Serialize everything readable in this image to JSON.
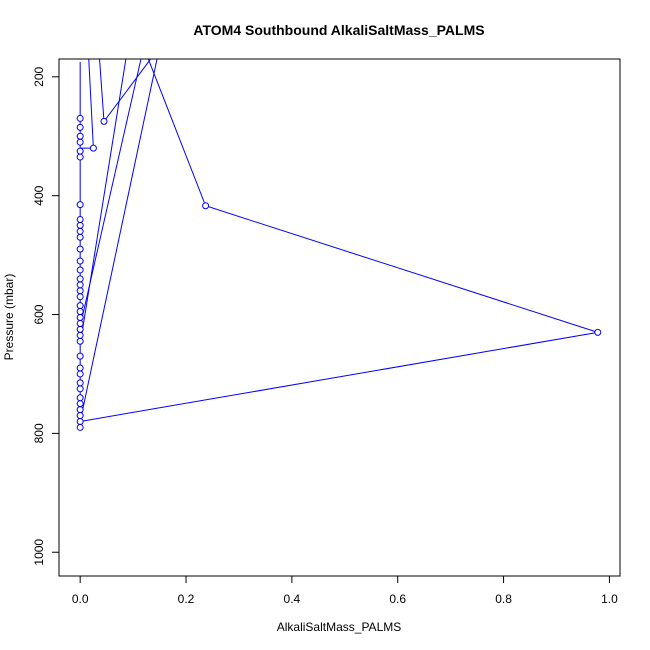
{
  "chart_data": {
    "type": "line",
    "title": "ATOM4 Southbound AlkaliSaltMass_PALMS",
    "xlabel": "AlkaliSaltMass_PALMS",
    "ylabel": "Pressure (mbar)",
    "xlim": [
      -0.04,
      1.02
    ],
    "ylim": [
      1040,
      170
    ],
    "y_reversed": true,
    "xticks": [
      {
        "value": 0.0,
        "label": "0.0"
      },
      {
        "value": 0.2,
        "label": "0.2"
      },
      {
        "value": 0.4,
        "label": "0.4"
      },
      {
        "value": 0.6,
        "label": "0.6"
      },
      {
        "value": 0.8,
        "label": "0.8"
      },
      {
        "value": 1.0,
        "label": "1.0"
      }
    ],
    "yticks": [
      {
        "value": 200,
        "label": "200"
      },
      {
        "value": 400,
        "label": "400"
      },
      {
        "value": 600,
        "label": "600"
      },
      {
        "value": 800,
        "label": "800"
      },
      {
        "value": 1000,
        "label": "1000"
      }
    ],
    "grid": false,
    "legend": "none",
    "series_color": "#0000ff",
    "series": [
      {
        "x": [
          0.0,
          0.0,
          0.0,
          0.0,
          0.0,
          0.0,
          0.0,
          0.0,
          0.0,
          0.0,
          0.0,
          0.0,
          0.0,
          0.0,
          0.0,
          0.0,
          0.0,
          0.0,
          0.0,
          0.0,
          0.0,
          0.0,
          0.0,
          0.0,
          0.0,
          0.0,
          0.0,
          0.0,
          0.0,
          0.0,
          0.0,
          0.0,
          0.0,
          0.0,
          0.0,
          0.0,
          0.0,
          0.0,
          0.0,
          0.0,
          0.0,
          0.0,
          0.0,
          0.0,
          0.0,
          0.0,
          0.0,
          0.0,
          0.0,
          0.0,
          0.0
        ],
        "y": [
          790,
          780,
          770,
          760,
          750,
          740,
          725,
          715,
          700,
          690,
          670,
          660,
          645,
          635,
          625,
          615,
          605,
          595,
          585,
          570,
          560,
          550,
          540,
          525,
          510,
          490,
          470,
          460,
          450,
          440,
          415,
          335,
          325,
          310,
          300,
          285,
          270,
          255,
          240,
          225,
          215,
          200,
          190,
          180,
          175,
          185,
          195,
          205,
          220,
          235,
          790
        ]
      },
      {
        "x": [
          0.0,
          0.12,
          0.237,
          0.978,
          0.0,
          0.15,
          0.045,
          0.035
        ],
        "y": [
          620,
          150,
          417,
          630,
          780,
          150,
          275,
          150
        ]
      },
      {
        "x": [
          0.0,
          0.025,
          0.015
        ],
        "y": [
          320,
          320,
          150
        ]
      },
      {
        "x": [
          0.0,
          0.09,
          0.26
        ],
        "y": [
          650,
          150,
          150
        ]
      }
    ],
    "points": [
      {
        "x": 0.0,
        "y": 790
      },
      {
        "x": 0.0,
        "y": 780
      },
      {
        "x": 0.0,
        "y": 770
      },
      {
        "x": 0.0,
        "y": 760
      },
      {
        "x": 0.0,
        "y": 750
      },
      {
        "x": 0.0,
        "y": 740
      },
      {
        "x": 0.0,
        "y": 725
      },
      {
        "x": 0.0,
        "y": 715
      },
      {
        "x": 0.0,
        "y": 700
      },
      {
        "x": 0.0,
        "y": 690
      },
      {
        "x": 0.0,
        "y": 670
      },
      {
        "x": 0.0,
        "y": 645
      },
      {
        "x": 0.0,
        "y": 635
      },
      {
        "x": 0.0,
        "y": 625
      },
      {
        "x": 0.0,
        "y": 615
      },
      {
        "x": 0.0,
        "y": 605
      },
      {
        "x": 0.0,
        "y": 595
      },
      {
        "x": 0.0,
        "y": 585
      },
      {
        "x": 0.0,
        "y": 570
      },
      {
        "x": 0.0,
        "y": 560
      },
      {
        "x": 0.0,
        "y": 550
      },
      {
        "x": 0.0,
        "y": 540
      },
      {
        "x": 0.0,
        "y": 525
      },
      {
        "x": 0.0,
        "y": 510
      },
      {
        "x": 0.0,
        "y": 490
      },
      {
        "x": 0.0,
        "y": 470
      },
      {
        "x": 0.0,
        "y": 460
      },
      {
        "x": 0.0,
        "y": 450
      },
      {
        "x": 0.0,
        "y": 440
      },
      {
        "x": 0.0,
        "y": 415
      },
      {
        "x": 0.0,
        "y": 335
      },
      {
        "x": 0.0,
        "y": 325
      },
      {
        "x": 0.0,
        "y": 310
      },
      {
        "x": 0.0,
        "y": 300
      },
      {
        "x": 0.0,
        "y": 285
      },
      {
        "x": 0.0,
        "y": 270
      },
      {
        "x": 0.237,
        "y": 417
      },
      {
        "x": 0.978,
        "y": 630
      },
      {
        "x": 0.045,
        "y": 275
      },
      {
        "x": 0.025,
        "y": 320
      }
    ]
  }
}
